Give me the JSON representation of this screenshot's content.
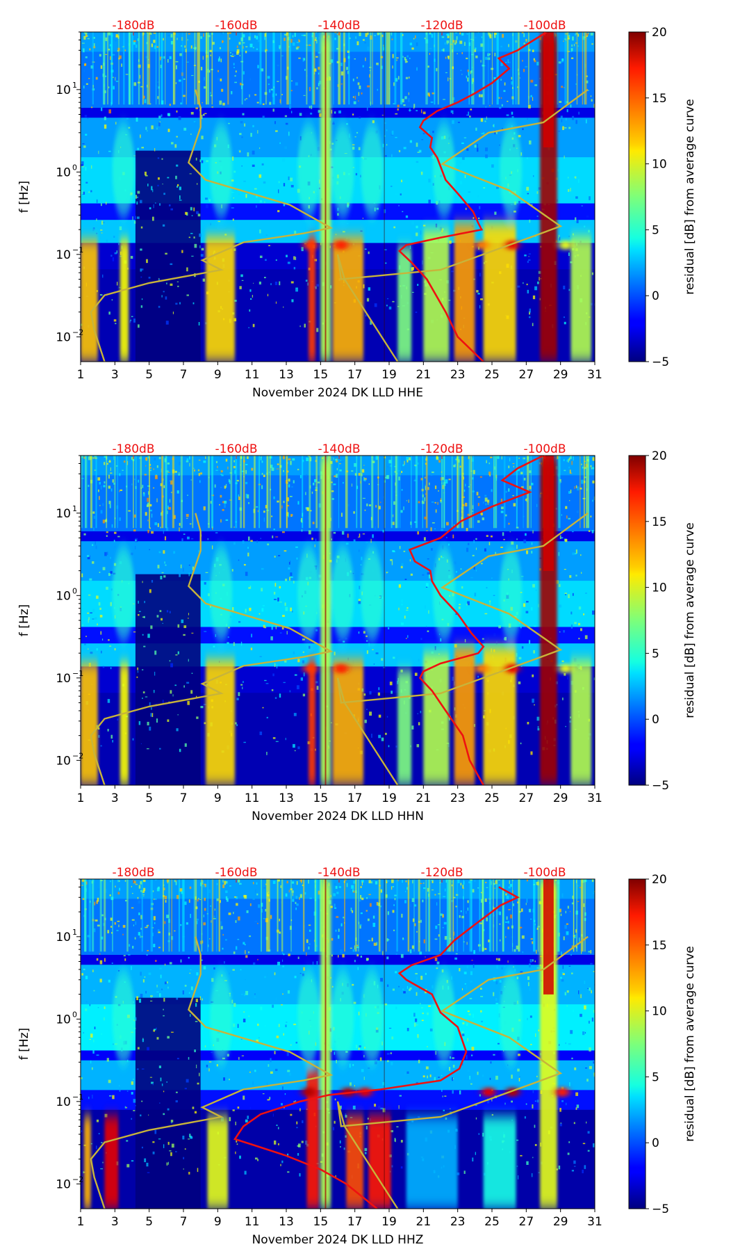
{
  "chart_data": [
    {
      "type": "heatmap",
      "xlabel": "November 2024 DK LLD  HHE",
      "ylabel": "f [Hz]",
      "x_ticks": [
        "1",
        "3",
        "5",
        "7",
        "9",
        "11",
        "13",
        "15",
        "17",
        "19",
        "21",
        "23",
        "25",
        "27",
        "29",
        "31"
      ],
      "y_ticks": [
        {
          "exp": "1",
          "value": 10
        },
        {
          "exp": "0",
          "value": 1
        },
        {
          "exp": "−1",
          "value": 0.1
        },
        {
          "exp": "−2",
          "value": 0.01
        }
      ],
      "ylim": [
        0.005,
        50
      ],
      "xlim": [
        1,
        31
      ],
      "db_labels": [
        "-180dB",
        "-160dB",
        "-140dB",
        "-120dB",
        "-100dB"
      ],
      "colorbar": {
        "label": "residual [dB] from average curve",
        "ticks": [
          "20",
          "15",
          "10",
          "5",
          "0",
          "−5"
        ],
        "range": [
          -5,
          20
        ]
      },
      "avg_curve_color": "#ee1111",
      "ref_curve_color": "#c8b43a"
    },
    {
      "type": "heatmap",
      "xlabel": "November 2024 DK LLD  HHN",
      "ylabel": "f [Hz]",
      "x_ticks": [
        "1",
        "3",
        "5",
        "7",
        "9",
        "11",
        "13",
        "15",
        "17",
        "19",
        "21",
        "23",
        "25",
        "27",
        "29",
        "31"
      ],
      "y_ticks": [
        {
          "exp": "1",
          "value": 10
        },
        {
          "exp": "0",
          "value": 1
        },
        {
          "exp": "−1",
          "value": 0.1
        },
        {
          "exp": "−2",
          "value": 0.01
        }
      ],
      "ylim": [
        0.005,
        50
      ],
      "xlim": [
        1,
        31
      ],
      "db_labels": [
        "-180dB",
        "-160dB",
        "-140dB",
        "-120dB",
        "-100dB"
      ],
      "colorbar": {
        "label": "residual [dB] from average curve",
        "ticks": [
          "20",
          "15",
          "10",
          "5",
          "0",
          "−5"
        ],
        "range": [
          -5,
          20
        ]
      },
      "avg_curve_color": "#ee1111",
      "ref_curve_color": "#c8b43a"
    },
    {
      "type": "heatmap",
      "xlabel": "November 2024 DK LLD  HHZ",
      "ylabel": "f [Hz]",
      "x_ticks": [
        "1",
        "3",
        "5",
        "7",
        "9",
        "11",
        "13",
        "15",
        "17",
        "19",
        "21",
        "23",
        "25",
        "27",
        "29",
        "31"
      ],
      "y_ticks": [
        {
          "exp": "1",
          "value": 10
        },
        {
          "exp": "0",
          "value": 1
        },
        {
          "exp": "−1",
          "value": 0.1
        },
        {
          "exp": "−2",
          "value": 0.01
        }
      ],
      "ylim": [
        0.005,
        50
      ],
      "xlim": [
        1,
        31
      ],
      "db_labels": [
        "-180dB",
        "-160dB",
        "-140dB",
        "-120dB",
        "-100dB"
      ],
      "colorbar": {
        "label": "residual [dB] from average curve",
        "ticks": [
          "20",
          "15",
          "10",
          "5",
          "0",
          "−5"
        ],
        "range": [
          -5,
          20
        ]
      },
      "avg_curve_color": "#ee1111",
      "ref_curve_color": "#c8b43a"
    }
  ]
}
